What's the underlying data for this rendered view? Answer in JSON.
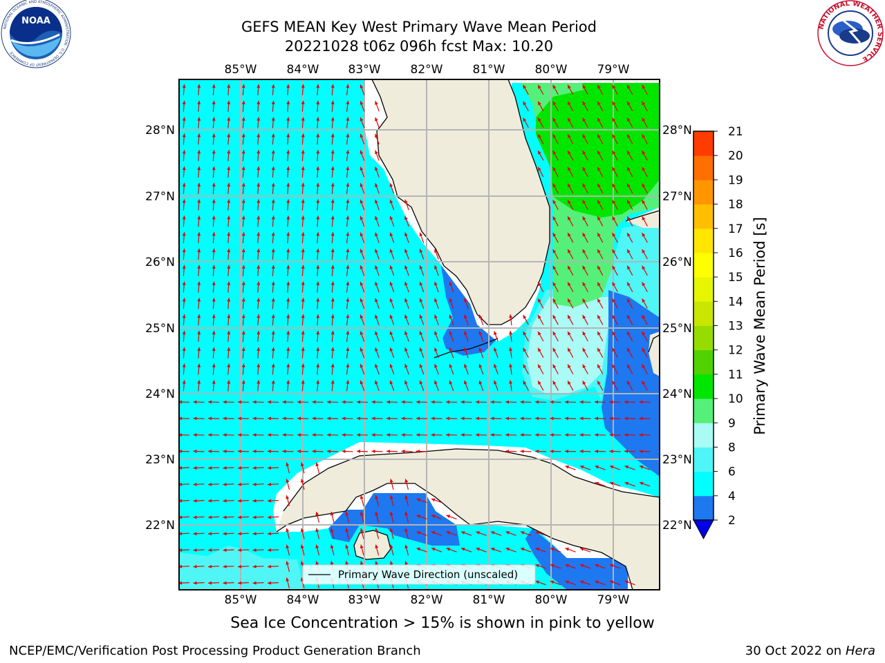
{
  "header": {
    "title_line1": "GEFS MEAN Key West Primary Wave Mean Period",
    "title_line2": "20221028 t06z 096h fcst   Max: 10.20"
  },
  "logos": {
    "left_text": "NOAA",
    "left_ring": "NATIONAL OCEANIC AND ATMOSPHERIC ADMINISTRATION · U.S. DEPARTMENT OF COMMERCE",
    "right_ring": "NATIONAL WEATHER SERVICE"
  },
  "map": {
    "lon_labels": [
      "85°W",
      "84°W",
      "83°W",
      "82°W",
      "81°W",
      "80°W",
      "79°W"
    ],
    "lat_labels": [
      "28°N",
      "27°N",
      "26°N",
      "25°N",
      "24°N",
      "23°N",
      "22°N"
    ],
    "legend_label": "Primary Wave Direction (unscaled)",
    "colors": {
      "land": "#efecdc",
      "band_2_4": "#1e78f0",
      "band_4_6": "#00ffff",
      "band_6_8": "#50f5f5",
      "band_8_9": "#aafaf5",
      "band_9_10": "#55f07a",
      "band_10_11": "#00e600",
      "arrow": "#e60000",
      "grid": "#b4b4b4"
    }
  },
  "colorbar": {
    "label": "Primary Wave Mean Period [s]",
    "ticks": [
      "2",
      "4",
      "6",
      "8",
      "9",
      "10",
      "11",
      "12",
      "13",
      "14",
      "15",
      "16",
      "17",
      "18",
      "19",
      "20",
      "21"
    ],
    "colors": [
      "#1e78f0",
      "#00ffff",
      "#50f5f5",
      "#aafaf5",
      "#55f07a",
      "#00e600",
      "#50d200",
      "#96dc00",
      "#c8e600",
      "#e6f500",
      "#ffff00",
      "#ffe600",
      "#ffbe00",
      "#ff9600",
      "#ff6e00",
      "#ff3c00",
      "#ff0000"
    ],
    "extend_color": "#0000e6"
  },
  "footer": {
    "ice_note": "Sea Ice Concentration > 15% is shown in pink to yellow",
    "credit": "NCEP/EMC/Verification Post Processing Product Generation Branch",
    "date": "30 Oct 2022 on",
    "machine": "Hera"
  }
}
